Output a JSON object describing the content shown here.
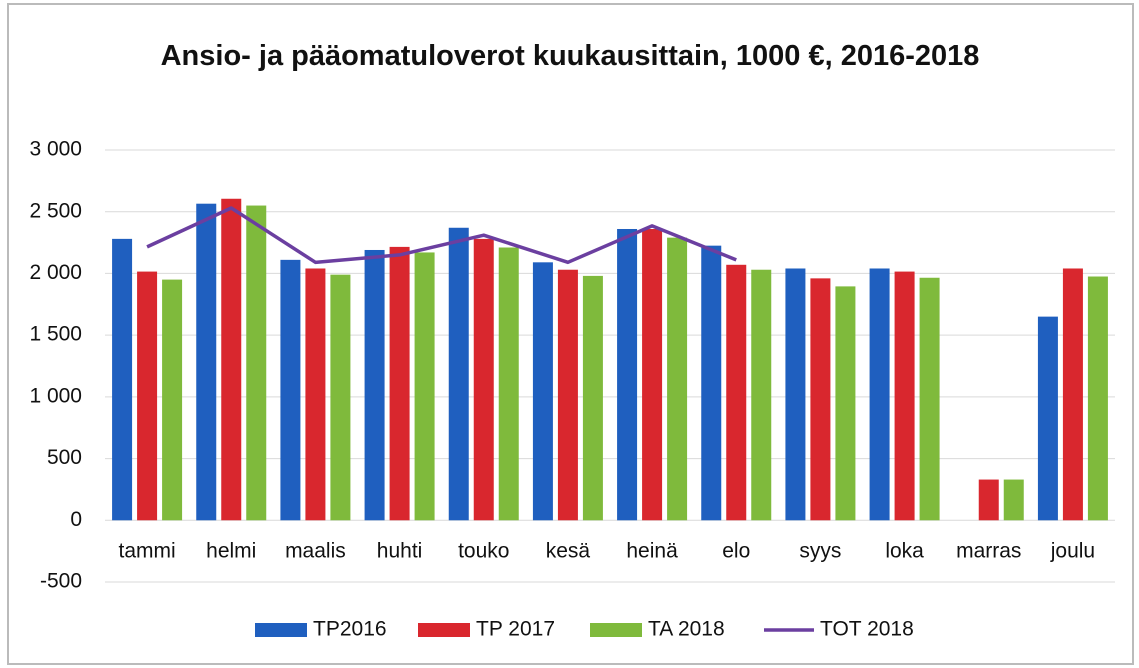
{
  "chart_data": {
    "type": "bar_line",
    "title": "Ansio- ja pääomatuloverot kuukausittain, 1000 €, 2016-2018",
    "categories": [
      "tammi",
      "helmi",
      "maalis",
      "huhti",
      "touko",
      "kesä",
      "heinä",
      "elo",
      "syys",
      "loka",
      "marras",
      "joulu"
    ],
    "series": [
      {
        "name": "TP2016",
        "type": "bar",
        "color": "#1f5fbf",
        "values": [
          2280,
          2565,
          2110,
          2190,
          2370,
          2090,
          2360,
          2225,
          2040,
          2040,
          null,
          1650
        ]
      },
      {
        "name": "TP 2017",
        "type": "bar",
        "color": "#d9272e",
        "values": [
          2015,
          2605,
          2040,
          2215,
          2280,
          2030,
          2360,
          2070,
          1960,
          2015,
          330,
          2040
        ]
      },
      {
        "name": "TA 2018",
        "type": "bar",
        "color": "#7fba3c",
        "values": [
          1950,
          2550,
          1990,
          2170,
          2210,
          1980,
          2290,
          2030,
          1895,
          1965,
          330,
          1975
        ]
      },
      {
        "name": "TOT 2018",
        "type": "line",
        "color": "#6b3fa0",
        "values": [
          2215,
          2530,
          2090,
          2150,
          2310,
          2090,
          2385,
          2110,
          null,
          null,
          null,
          null
        ]
      }
    ],
    "ylim": [
      -500,
      3000
    ],
    "yticks": [
      -500,
      0,
      500,
      {
        "value": 1000,
        "label": "1 000"
      },
      {
        "value": 1500,
        "label": "1 500"
      },
      {
        "value": 2000,
        "label": "2 000"
      },
      {
        "value": 2500,
        "label": "2 500"
      },
      {
        "value": 3000,
        "label": "3 000"
      }
    ],
    "grid": true,
    "legend": "bottom"
  }
}
